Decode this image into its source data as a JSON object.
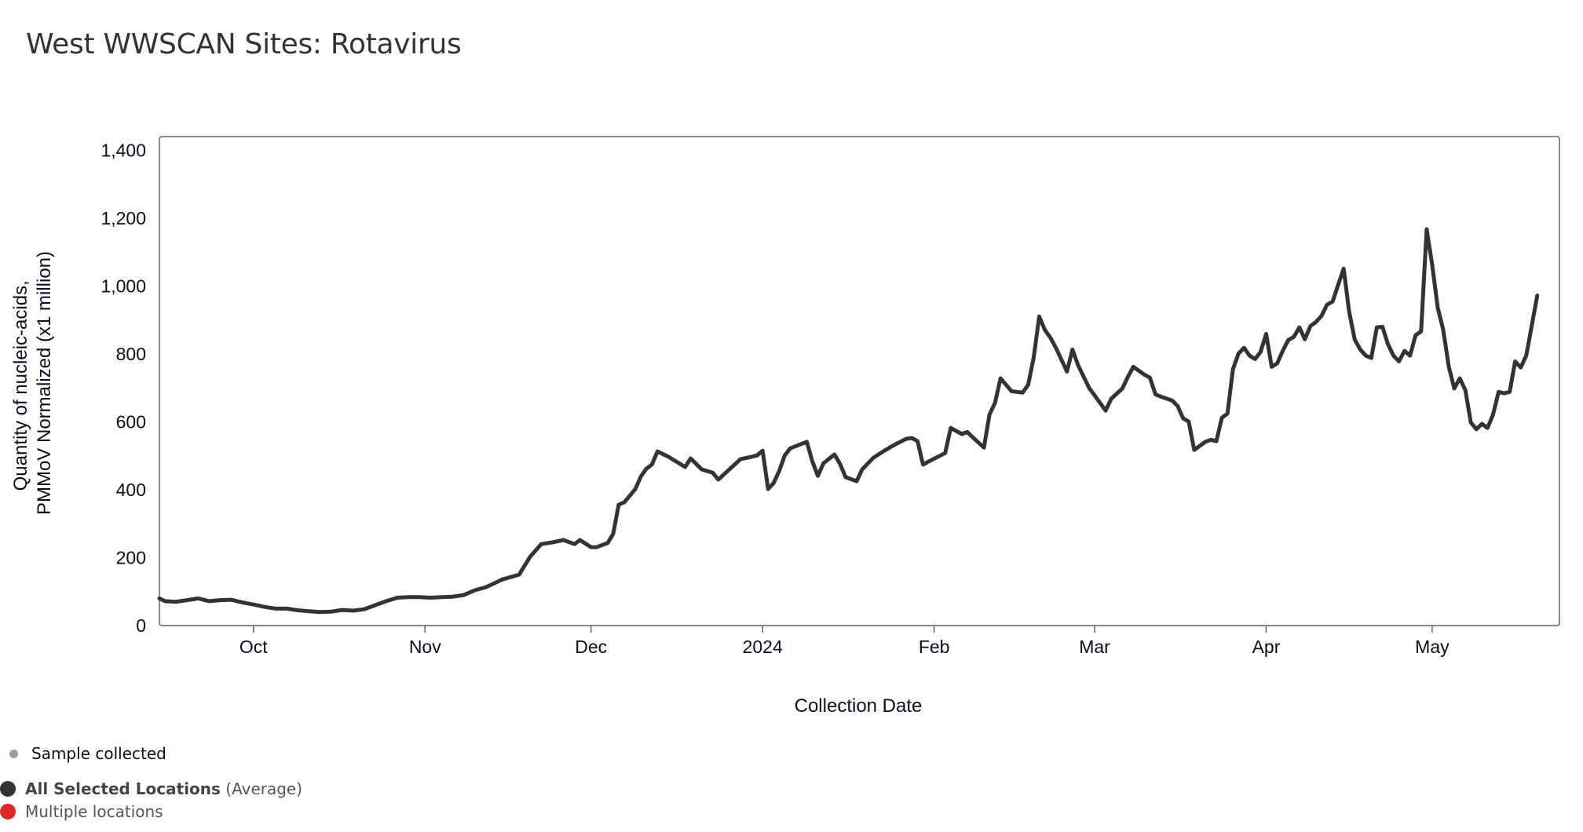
{
  "title": "West WWSCAN Sites: Rotavirus",
  "colors": {
    "line": "#333333",
    "frame": "#666666",
    "sample_dot": "#9a9ca8",
    "average": "#333333",
    "multiple": "#e0262b"
  },
  "legend": {
    "sample": "Sample collected",
    "average_bold": "All Selected Locations",
    "average_suffix": "(Average)",
    "multiple": "Multiple locations"
  },
  "chart_data": {
    "type": "line",
    "title": "West WWSCAN Sites: Rotavirus",
    "xlabel": "Collection Date",
    "ylabel": [
      "Quantity of nucleic-acids,",
      "PMMoV Normalized (x1 million)"
    ],
    "xlim": [
      "2023-09-14",
      "2024-05-24"
    ],
    "ylim": [
      0,
      1440
    ],
    "yticks": [
      0,
      200,
      400,
      600,
      800,
      1000,
      1200,
      1400
    ],
    "ytick_labels": [
      "0",
      "200",
      "400",
      "600",
      "800",
      "1,000",
      "1,200",
      "1,400"
    ],
    "xticks": [
      "2023-10-01",
      "2023-11-01",
      "2023-12-01",
      "2024-01-01",
      "2024-02-01",
      "2024-03-01",
      "2024-04-01",
      "2024-05-01"
    ],
    "xtick_labels": [
      "Oct",
      "Nov",
      "Dec",
      "2024",
      "Feb",
      "Mar",
      "Apr",
      "May"
    ],
    "grid": false,
    "series": [
      {
        "name": "All Selected Locations (Average)",
        "points": [
          [
            "2023-09-14",
            80
          ],
          [
            "2023-09-15",
            72
          ],
          [
            "2023-09-17",
            70
          ],
          [
            "2023-09-19",
            75
          ],
          [
            "2023-09-21",
            80
          ],
          [
            "2023-09-23",
            72
          ],
          [
            "2023-09-25",
            75
          ],
          [
            "2023-09-27",
            76
          ],
          [
            "2023-09-29",
            68
          ],
          [
            "2023-10-01",
            62
          ],
          [
            "2023-10-03",
            55
          ],
          [
            "2023-10-05",
            50
          ],
          [
            "2023-10-07",
            50
          ],
          [
            "2023-10-09",
            45
          ],
          [
            "2023-10-11",
            42
          ],
          [
            "2023-10-13",
            40
          ],
          [
            "2023-10-15",
            41
          ],
          [
            "2023-10-17",
            46
          ],
          [
            "2023-10-19",
            44
          ],
          [
            "2023-10-21",
            48
          ],
          [
            "2023-10-23",
            60
          ],
          [
            "2023-10-25",
            72
          ],
          [
            "2023-10-27",
            82
          ],
          [
            "2023-10-29",
            84
          ],
          [
            "2023-10-31",
            84
          ],
          [
            "2023-11-02",
            82
          ],
          [
            "2023-11-04",
            84
          ],
          [
            "2023-11-06",
            85
          ],
          [
            "2023-11-08",
            90
          ],
          [
            "2023-11-10",
            104
          ],
          [
            "2023-11-12",
            113
          ],
          [
            "2023-11-15",
            136
          ],
          [
            "2023-11-18",
            150
          ],
          [
            "2023-11-20",
            203
          ],
          [
            "2023-11-22",
            240
          ],
          [
            "2023-11-24",
            245
          ],
          [
            "2023-11-26",
            252
          ],
          [
            "2023-11-28",
            240
          ],
          [
            "2023-11-29",
            252
          ],
          [
            "2023-12-01",
            231
          ],
          [
            "2023-12-02",
            231
          ],
          [
            "2023-12-04",
            243
          ],
          [
            "2023-12-05",
            270
          ],
          [
            "2023-12-06",
            356
          ],
          [
            "2023-12-07",
            363
          ],
          [
            "2023-12-09",
            402
          ],
          [
            "2023-12-10",
            439
          ],
          [
            "2023-12-11",
            462
          ],
          [
            "2023-12-12",
            474
          ],
          [
            "2023-12-13",
            513
          ],
          [
            "2023-12-15",
            497
          ],
          [
            "2023-12-18",
            467
          ],
          [
            "2023-12-19",
            492
          ],
          [
            "2023-12-21",
            460
          ],
          [
            "2023-12-23",
            450
          ],
          [
            "2023-12-24",
            430
          ],
          [
            "2023-12-26",
            460
          ],
          [
            "2023-12-28",
            490
          ],
          [
            "2023-12-30",
            497
          ],
          [
            "2023-12-31",
            501
          ],
          [
            "2024-01-01",
            515
          ],
          [
            "2024-01-02",
            402
          ],
          [
            "2024-01-03",
            420
          ],
          [
            "2024-01-04",
            455
          ],
          [
            "2024-01-05",
            501
          ],
          [
            "2024-01-06",
            522
          ],
          [
            "2024-01-09",
            541
          ],
          [
            "2024-01-10",
            483
          ],
          [
            "2024-01-11",
            441
          ],
          [
            "2024-01-12",
            478
          ],
          [
            "2024-01-14",
            504
          ],
          [
            "2024-01-15",
            476
          ],
          [
            "2024-01-16",
            437
          ],
          [
            "2024-01-18",
            425
          ],
          [
            "2024-01-19",
            460
          ],
          [
            "2024-01-21",
            494
          ],
          [
            "2024-01-23",
            515
          ],
          [
            "2024-01-25",
            534
          ],
          [
            "2024-01-27",
            550
          ],
          [
            "2024-01-28",
            552
          ],
          [
            "2024-01-29",
            543
          ],
          [
            "2024-01-30",
            474
          ],
          [
            "2024-01-31",
            483
          ],
          [
            "2024-02-03",
            508
          ],
          [
            "2024-02-04",
            582
          ],
          [
            "2024-02-06",
            564
          ],
          [
            "2024-02-07",
            570
          ],
          [
            "2024-02-08",
            554
          ],
          [
            "2024-02-10",
            524
          ],
          [
            "2024-02-11",
            621
          ],
          [
            "2024-02-12",
            656
          ],
          [
            "2024-02-13",
            728
          ],
          [
            "2024-02-15",
            690
          ],
          [
            "2024-02-17",
            686
          ],
          [
            "2024-02-18",
            709
          ],
          [
            "2024-02-19",
            790
          ],
          [
            "2024-02-20",
            910
          ],
          [
            "2024-02-21",
            871
          ],
          [
            "2024-02-22",
            848
          ],
          [
            "2024-02-23",
            818
          ],
          [
            "2024-02-25",
            748
          ],
          [
            "2024-02-26",
            813
          ],
          [
            "2024-02-27",
            767
          ],
          [
            "2024-02-29",
            700
          ],
          [
            "2024-03-03",
            633
          ],
          [
            "2024-03-04",
            668
          ],
          [
            "2024-03-06",
            698
          ],
          [
            "2024-03-07",
            732
          ],
          [
            "2024-03-08",
            762
          ],
          [
            "2024-03-10",
            739
          ],
          [
            "2024-03-11",
            730
          ],
          [
            "2024-03-12",
            681
          ],
          [
            "2024-03-13",
            674
          ],
          [
            "2024-03-15",
            663
          ],
          [
            "2024-03-16",
            647
          ],
          [
            "2024-03-17",
            610
          ],
          [
            "2024-03-18",
            601
          ],
          [
            "2024-03-19",
            517
          ],
          [
            "2024-03-21",
            541
          ],
          [
            "2024-03-22",
            547
          ],
          [
            "2024-03-23",
            543
          ],
          [
            "2024-03-24",
            612
          ],
          [
            "2024-03-25",
            624
          ],
          [
            "2024-03-26",
            755
          ],
          [
            "2024-03-27",
            801
          ],
          [
            "2024-03-28",
            818
          ],
          [
            "2024-03-29",
            795
          ],
          [
            "2024-03-30",
            785
          ],
          [
            "2024-03-31",
            806
          ],
          [
            "2024-04-01",
            859
          ],
          [
            "2024-04-02",
            762
          ],
          [
            "2024-04-03",
            772
          ],
          [
            "2024-04-04",
            809
          ],
          [
            "2024-04-05",
            841
          ],
          [
            "2024-04-06",
            850
          ],
          [
            "2024-04-07",
            878
          ],
          [
            "2024-04-08",
            843
          ],
          [
            "2024-04-09",
            882
          ],
          [
            "2024-04-10",
            894
          ],
          [
            "2024-04-11",
            912
          ],
          [
            "2024-04-12",
            945
          ],
          [
            "2024-04-13",
            954
          ],
          [
            "2024-04-14",
            1003
          ],
          [
            "2024-04-15",
            1051
          ],
          [
            "2024-04-16",
            924
          ],
          [
            "2024-04-17",
            843
          ],
          [
            "2024-04-18",
            813
          ],
          [
            "2024-04-19",
            795
          ],
          [
            "2024-04-20",
            788
          ],
          [
            "2024-04-21",
            878
          ],
          [
            "2024-04-22",
            880
          ],
          [
            "2024-04-23",
            829
          ],
          [
            "2024-04-24",
            795
          ],
          [
            "2024-04-25",
            778
          ],
          [
            "2024-04-26",
            809
          ],
          [
            "2024-04-27",
            795
          ],
          [
            "2024-04-28",
            855
          ],
          [
            "2024-04-29",
            866
          ],
          [
            "2024-04-30",
            1167
          ],
          [
            "2024-05-01",
            1063
          ],
          [
            "2024-05-02",
            936
          ],
          [
            "2024-05-03",
            871
          ],
          [
            "2024-05-04",
            762
          ],
          [
            "2024-05-05",
            698
          ],
          [
            "2024-05-06",
            728
          ],
          [
            "2024-05-07",
            693
          ],
          [
            "2024-05-08",
            598
          ],
          [
            "2024-05-09",
            578
          ],
          [
            "2024-05-10",
            594
          ],
          [
            "2024-05-11",
            582
          ],
          [
            "2024-05-12",
            621
          ],
          [
            "2024-05-13",
            688
          ],
          [
            "2024-05-14",
            684
          ],
          [
            "2024-05-15",
            688
          ],
          [
            "2024-05-16",
            778
          ],
          [
            "2024-05-17",
            760
          ],
          [
            "2024-05-18",
            795
          ],
          [
            "2024-05-20",
            972
          ]
        ]
      }
    ],
    "legend_position": "bottom-left"
  }
}
